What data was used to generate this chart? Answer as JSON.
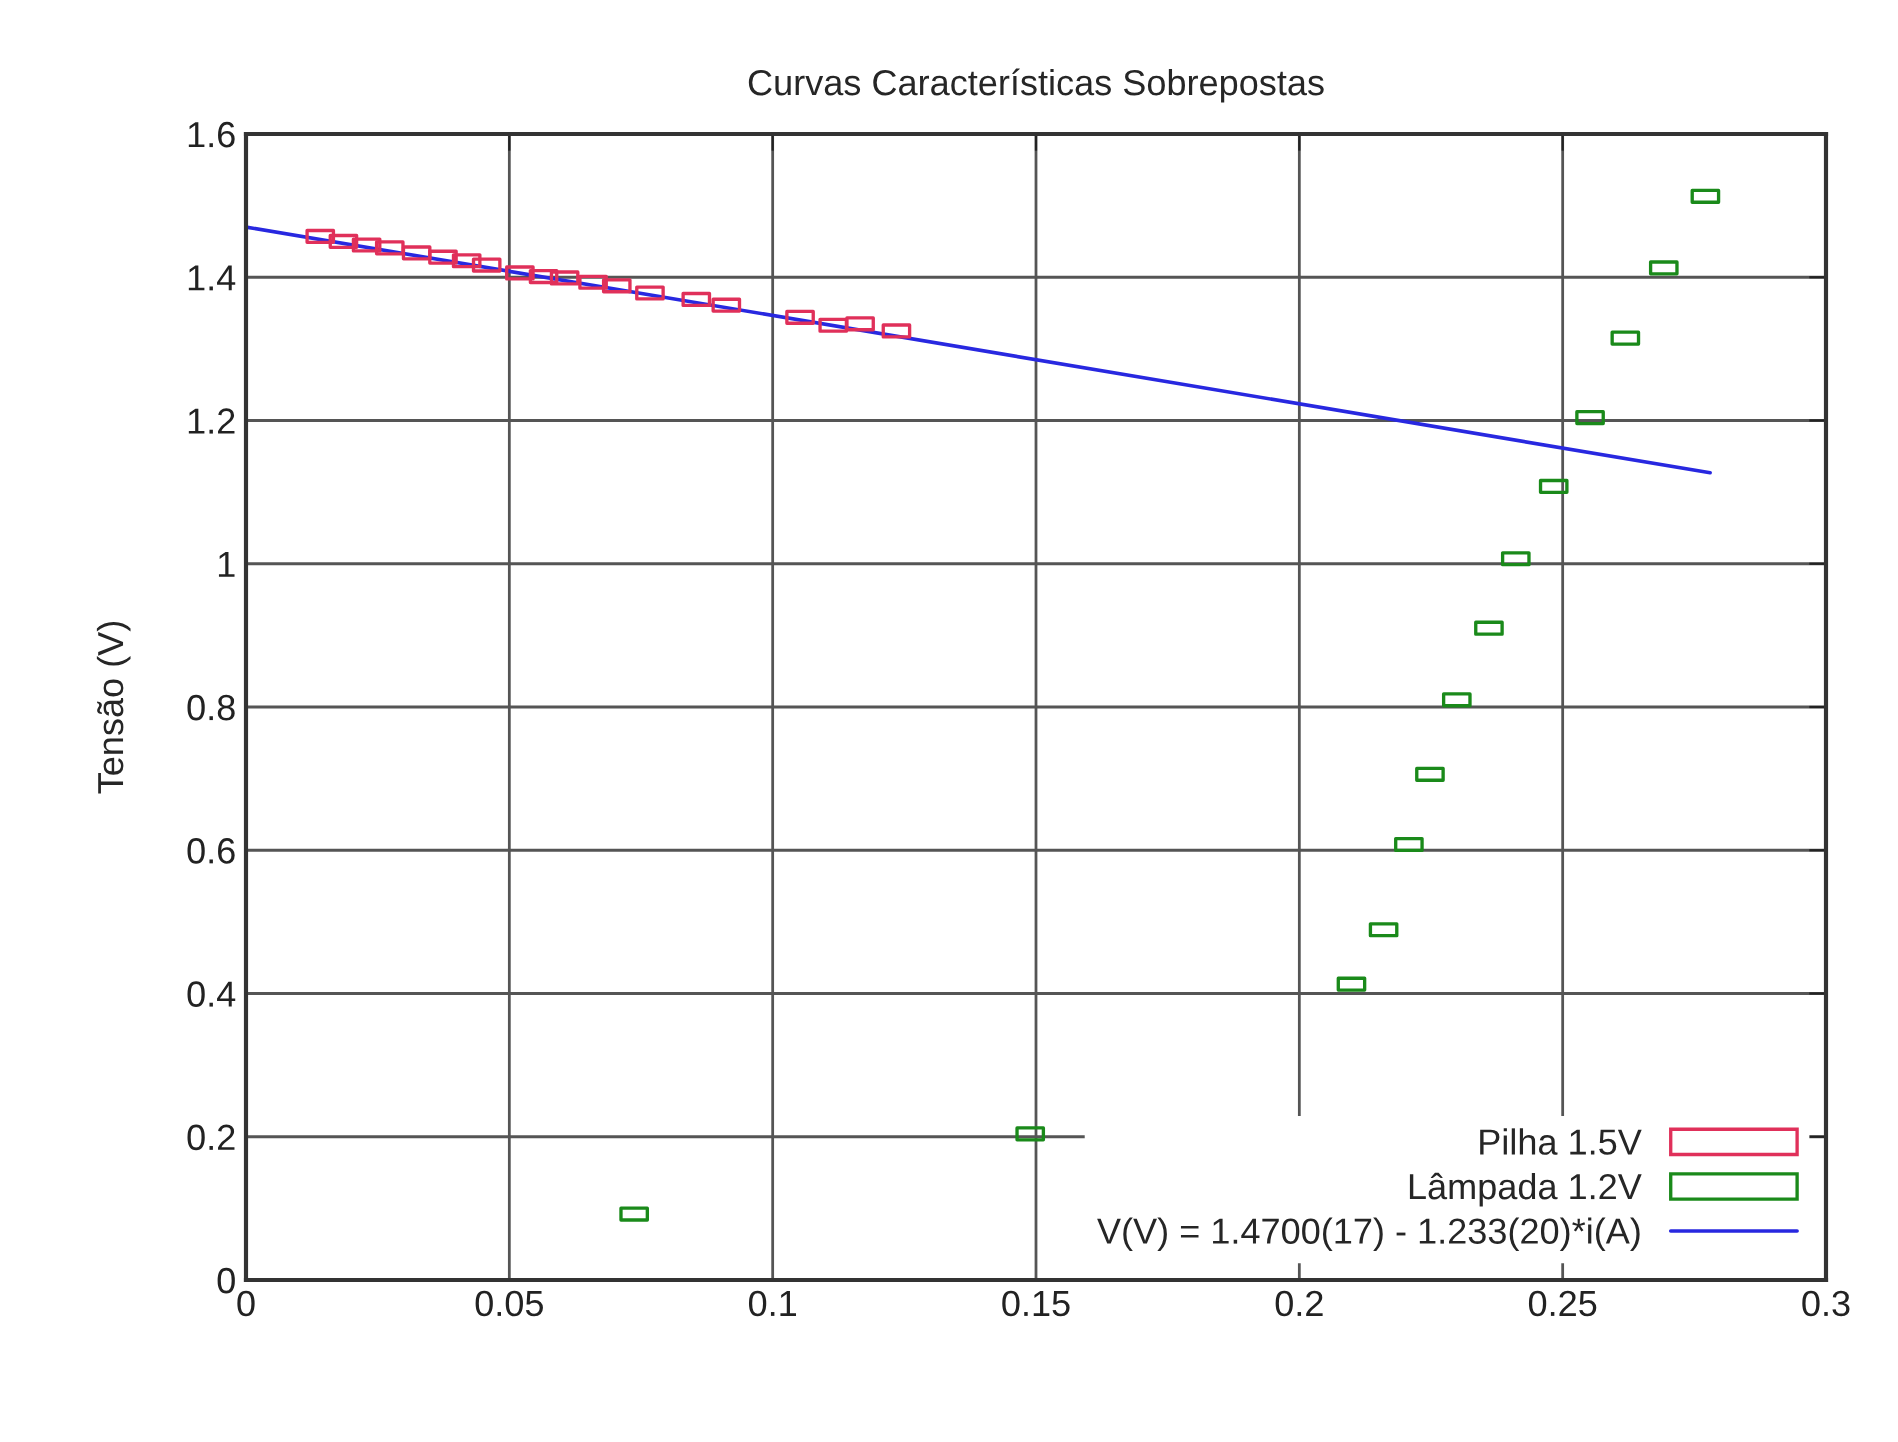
{
  "chart_data": {
    "type": "scatter",
    "title": "Curvas Características Sobrepostas",
    "ylabel": "Tensão (V)",
    "xlim": [
      0,
      0.3
    ],
    "xticks": [
      0,
      0.05,
      0.1,
      0.15,
      0.2,
      0.25,
      0.3
    ],
    "ylim": [
      0,
      1.6
    ],
    "yticks": [
      0,
      0.2,
      0.4,
      0.6,
      0.8,
      1,
      1.2,
      1.4,
      1.6
    ],
    "grid": true,
    "legend": "bottom right",
    "series": [
      {
        "name": "Pilha 1.5V",
        "marker": "square",
        "color": "#e0305a",
        "x": [
          0.0141,
          0.0185,
          0.0229,
          0.0273,
          0.0324,
          0.0374,
          0.0419,
          0.0457,
          0.052,
          0.0565,
          0.0605,
          0.0659,
          0.0704,
          0.0767,
          0.0855,
          0.0912,
          0.1052,
          0.1115,
          0.1166,
          0.1235
        ],
        "values": [
          1.457,
          1.45,
          1.445,
          1.441,
          1.434,
          1.428,
          1.423,
          1.417,
          1.406,
          1.401,
          1.399,
          1.393,
          1.388,
          1.378,
          1.369,
          1.361,
          1.344,
          1.333,
          1.335,
          1.325
        ]
      },
      {
        "name": "Lâmpada 1.2V",
        "marker": "square",
        "color": "#1a8a1a",
        "x": [
          0.0737,
          0.1489,
          0.2099,
          0.216,
          0.2208,
          0.2248,
          0.2299,
          0.236,
          0.2411,
          0.2483,
          0.2552,
          0.2619,
          0.2692,
          0.2771
        ],
        "values": [
          0.092,
          0.204,
          0.413,
          0.489,
          0.608,
          0.706,
          0.81,
          0.91,
          1.007,
          1.108,
          1.204,
          1.315,
          1.413,
          1.513
        ]
      },
      {
        "name": "V(V) = 1.4700(17) - 1.233(20)*i(A)",
        "type": "line",
        "marker": "none",
        "color": "#2828e0",
        "x": [
          0,
          0.278
        ],
        "values": [
          1.47,
          1.127
        ]
      }
    ]
  }
}
